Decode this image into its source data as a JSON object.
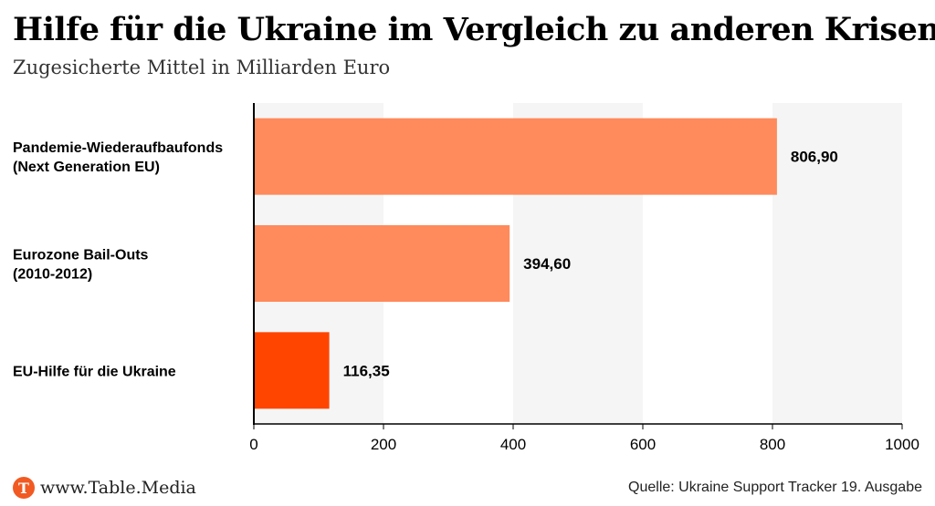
{
  "header": {
    "title": "Hilfe für die Ukraine im Vergleich zu anderen Krisen",
    "subtitle": "Zugesicherte Mittel in Milliarden Euro"
  },
  "footer": {
    "logo_letter": "T",
    "site": "www.Table.Media",
    "source": "Quelle: Ukraine Support Tracker 19. Ausgabe"
  },
  "colors": {
    "bar": "#ff8a5b",
    "highlight": "#ff4500",
    "band": "#f5f5f5",
    "axis": "#000000"
  },
  "chart_data": {
    "type": "bar",
    "orientation": "horizontal",
    "categories": [
      [
        "Pandemie-Wiederaufbaufonds",
        "(Next Generation EU)"
      ],
      [
        "Eurozone Bail-Outs",
        "(2010-2012)"
      ],
      [
        "EU-Hilfe für die Ukraine"
      ]
    ],
    "values": [
      806.9,
      394.6,
      116.35
    ],
    "value_labels": [
      "806,90",
      "394,60",
      "116,35"
    ],
    "highlight_index": 2,
    "xlim": [
      0,
      1000
    ],
    "xticks": [
      0,
      200,
      400,
      600,
      800,
      1000
    ],
    "xtick_labels": [
      "0",
      "200",
      "400",
      "600",
      "800",
      "1000"
    ],
    "grid": "alternating vertical bands",
    "legend": "none"
  }
}
